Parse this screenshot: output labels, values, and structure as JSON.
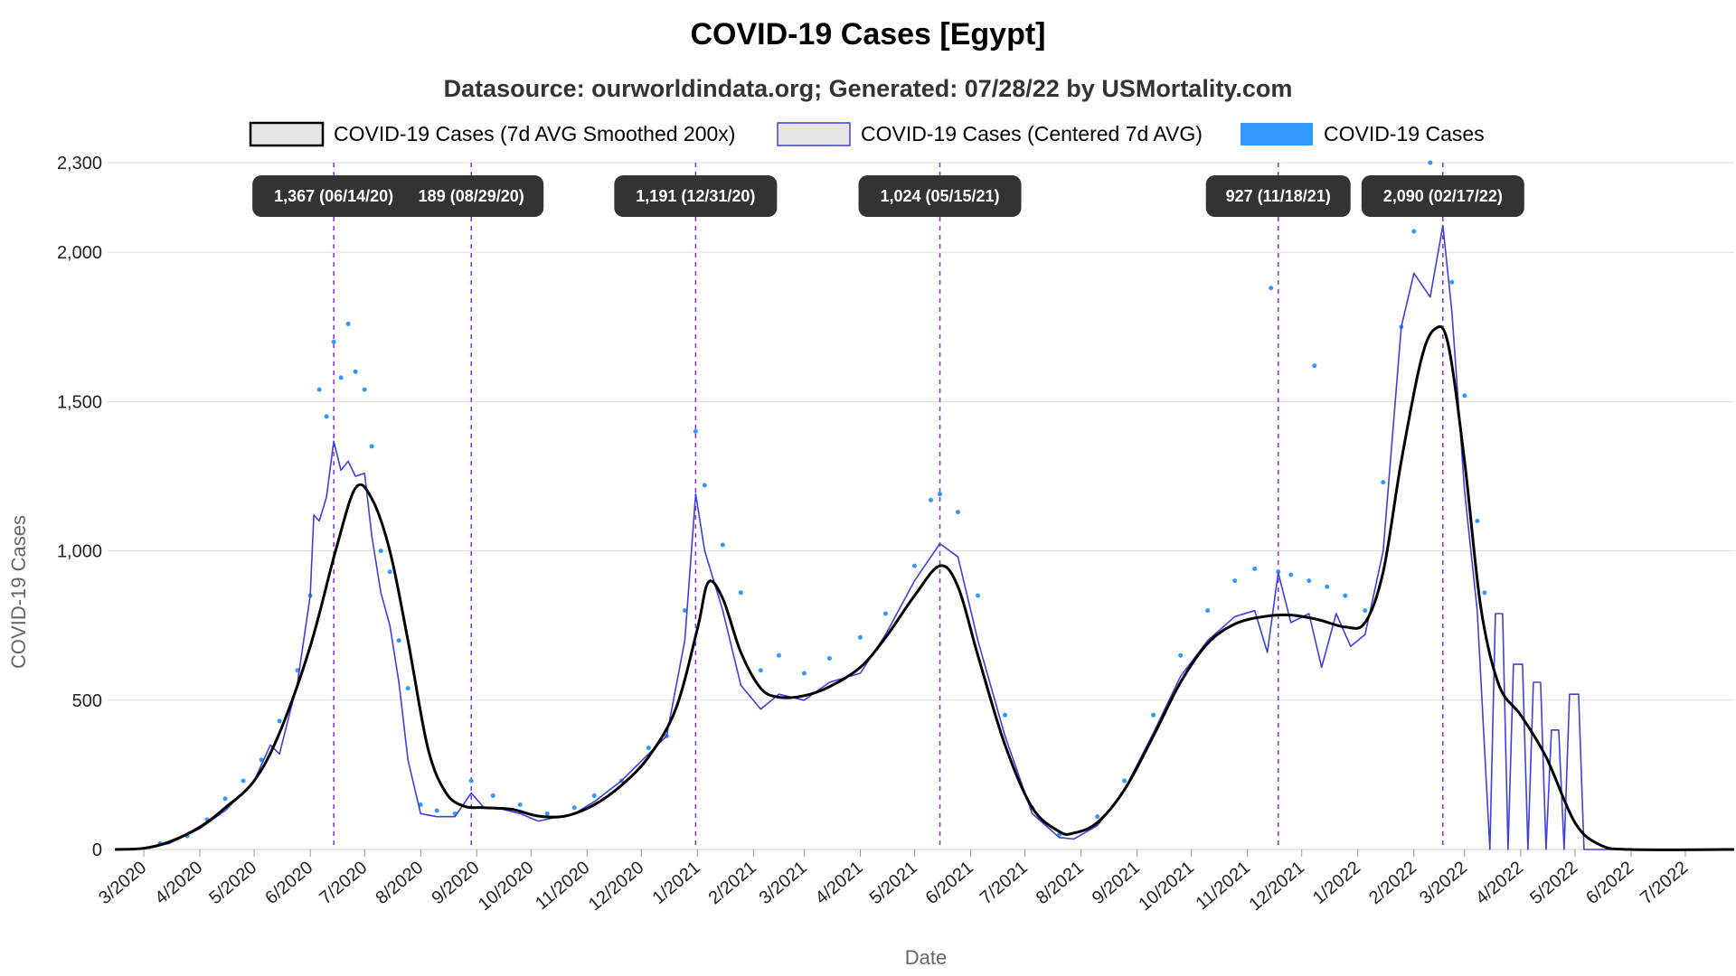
{
  "chart_data": {
    "type": "line",
    "title": "COVID-19 Cases [Egypt]",
    "subtitle": "Datasource: ourworldindata.org; Generated: 07/28/22 by USMortality.com",
    "xlabel": "Date",
    "ylabel": "COVID-19 Cases",
    "xlim": [
      "2020-02-14",
      "2022-07-28"
    ],
    "ylim": [
      0,
      2300
    ],
    "yticks": [
      0,
      500,
      1000,
      1500,
      2000,
      2300
    ],
    "ytick_labels": [
      "0",
      "500",
      "1,000",
      "1,500",
      "2,000",
      "2,300"
    ],
    "xtick_labels": [
      "3/2020",
      "4/2020",
      "5/2020",
      "6/2020",
      "7/2020",
      "8/2020",
      "9/2020",
      "10/2020",
      "11/2020",
      "12/2020",
      "1/2021",
      "2/2021",
      "3/2021",
      "4/2021",
      "5/2021",
      "6/2021",
      "7/2021",
      "8/2021",
      "9/2021",
      "10/2021",
      "11/2021",
      "12/2021",
      "1/2022",
      "2/2022",
      "3/2022",
      "4/2022",
      "5/2022",
      "6/2022",
      "7/2022"
    ],
    "xtick_dates": [
      "2020-03-01",
      "2020-04-01",
      "2020-05-01",
      "2020-06-01",
      "2020-07-01",
      "2020-08-01",
      "2020-09-01",
      "2020-10-01",
      "2020-11-01",
      "2020-12-01",
      "2021-01-01",
      "2021-02-01",
      "2021-03-01",
      "2021-04-01",
      "2021-05-01",
      "2021-06-01",
      "2021-07-01",
      "2021-08-01",
      "2021-09-01",
      "2021-10-01",
      "2021-11-01",
      "2021-12-01",
      "2022-01-01",
      "2022-02-01",
      "2022-03-01",
      "2022-04-01",
      "2022-05-01",
      "2022-06-01",
      "2022-07-01"
    ],
    "grid": true,
    "legend_position": "top",
    "colors": {
      "smoothed": "#000000",
      "centered_avg": "#3f3fdf",
      "daily": "#3399ff",
      "marker_line": "#8a2be2",
      "callout_bg": "#333333"
    },
    "series": [
      {
        "name": "COVID-19 Cases (7d AVG Smoothed 200x)",
        "style": "smooth-line",
        "points": [
          [
            "2020-02-14",
            0
          ],
          [
            "2020-03-01",
            4
          ],
          [
            "2020-03-15",
            25
          ],
          [
            "2020-04-01",
            75
          ],
          [
            "2020-04-15",
            140
          ],
          [
            "2020-05-01",
            230
          ],
          [
            "2020-05-15",
            390
          ],
          [
            "2020-06-01",
            680
          ],
          [
            "2020-06-15",
            1000
          ],
          [
            "2020-06-26",
            1210
          ],
          [
            "2020-07-05",
            1175
          ],
          [
            "2020-07-15",
            1000
          ],
          [
            "2020-07-25",
            700
          ],
          [
            "2020-08-05",
            340
          ],
          [
            "2020-08-15",
            190
          ],
          [
            "2020-08-25",
            145
          ],
          [
            "2020-09-05",
            140
          ],
          [
            "2020-09-20",
            135
          ],
          [
            "2020-10-05",
            112
          ],
          [
            "2020-10-20",
            112
          ],
          [
            "2020-11-05",
            150
          ],
          [
            "2020-11-20",
            215
          ],
          [
            "2020-12-05",
            310
          ],
          [
            "2020-12-20",
            470
          ],
          [
            "2021-01-01",
            740
          ],
          [
            "2021-01-07",
            895
          ],
          [
            "2021-01-15",
            840
          ],
          [
            "2021-01-25",
            660
          ],
          [
            "2021-02-05",
            540
          ],
          [
            "2021-02-15",
            510
          ],
          [
            "2021-03-01",
            515
          ],
          [
            "2021-03-15",
            545
          ],
          [
            "2021-04-01",
            610
          ],
          [
            "2021-04-15",
            710
          ],
          [
            "2021-05-01",
            850
          ],
          [
            "2021-05-15",
            950
          ],
          [
            "2021-05-25",
            880
          ],
          [
            "2021-06-05",
            650
          ],
          [
            "2021-06-20",
            350
          ],
          [
            "2021-07-05",
            140
          ],
          [
            "2021-07-20",
            60
          ],
          [
            "2021-07-28",
            55
          ],
          [
            "2021-08-10",
            90
          ],
          [
            "2021-08-25",
            200
          ],
          [
            "2021-09-10",
            380
          ],
          [
            "2021-09-25",
            560
          ],
          [
            "2021-10-10",
            690
          ],
          [
            "2021-10-25",
            755
          ],
          [
            "2021-11-10",
            780
          ],
          [
            "2021-11-25",
            785
          ],
          [
            "2021-12-10",
            770
          ],
          [
            "2021-12-25",
            745
          ],
          [
            "2022-01-05",
            760
          ],
          [
            "2022-01-15",
            930
          ],
          [
            "2022-01-25",
            1300
          ],
          [
            "2022-02-05",
            1640
          ],
          [
            "2022-02-13",
            1745
          ],
          [
            "2022-02-20",
            1690
          ],
          [
            "2022-03-01",
            1300
          ],
          [
            "2022-03-10",
            810
          ],
          [
            "2022-03-20",
            550
          ],
          [
            "2022-04-01",
            450
          ],
          [
            "2022-04-15",
            310
          ],
          [
            "2022-05-01",
            90
          ],
          [
            "2022-05-15",
            15
          ],
          [
            "2022-06-01",
            0
          ],
          [
            "2022-07-28",
            0
          ]
        ]
      },
      {
        "name": "COVID-19 Cases (Centered 7d AVG)",
        "style": "line",
        "points": [
          [
            "2020-02-14",
            0
          ],
          [
            "2020-03-01",
            5
          ],
          [
            "2020-03-15",
            20
          ],
          [
            "2020-04-01",
            70
          ],
          [
            "2020-04-15",
            130
          ],
          [
            "2020-05-01",
            230
          ],
          [
            "2020-05-10",
            350
          ],
          [
            "2020-05-15",
            320
          ],
          [
            "2020-05-25",
            560
          ],
          [
            "2020-06-01",
            850
          ],
          [
            "2020-06-03",
            1120
          ],
          [
            "2020-06-06",
            1100
          ],
          [
            "2020-06-10",
            1180
          ],
          [
            "2020-06-14",
            1367
          ],
          [
            "2020-06-18",
            1270
          ],
          [
            "2020-06-22",
            1300
          ],
          [
            "2020-06-26",
            1250
          ],
          [
            "2020-07-01",
            1260
          ],
          [
            "2020-07-05",
            1050
          ],
          [
            "2020-07-10",
            860
          ],
          [
            "2020-07-15",
            750
          ],
          [
            "2020-07-20",
            560
          ],
          [
            "2020-07-25",
            300
          ],
          [
            "2020-08-01",
            120
          ],
          [
            "2020-08-10",
            110
          ],
          [
            "2020-08-20",
            110
          ],
          [
            "2020-08-29",
            189
          ],
          [
            "2020-09-05",
            140
          ],
          [
            "2020-09-15",
            135
          ],
          [
            "2020-09-25",
            120
          ],
          [
            "2020-10-05",
            95
          ],
          [
            "2020-10-15",
            108
          ],
          [
            "2020-10-25",
            120
          ],
          [
            "2020-11-05",
            160
          ],
          [
            "2020-11-20",
            230
          ],
          [
            "2020-12-05",
            320
          ],
          [
            "2020-12-15",
            380
          ],
          [
            "2020-12-25",
            700
          ],
          [
            "2020-12-31",
            1191
          ],
          [
            "2021-01-05",
            1000
          ],
          [
            "2021-01-15",
            800
          ],
          [
            "2021-01-25",
            550
          ],
          [
            "2021-02-05",
            470
          ],
          [
            "2021-02-15",
            520
          ],
          [
            "2021-03-01",
            500
          ],
          [
            "2021-03-15",
            560
          ],
          [
            "2021-04-01",
            590
          ],
          [
            "2021-04-15",
            720
          ],
          [
            "2021-05-01",
            900
          ],
          [
            "2021-05-15",
            1024
          ],
          [
            "2021-05-25",
            980
          ],
          [
            "2021-06-05",
            700
          ],
          [
            "2021-06-20",
            380
          ],
          [
            "2021-07-05",
            120
          ],
          [
            "2021-07-20",
            40
          ],
          [
            "2021-07-28",
            35
          ],
          [
            "2021-08-10",
            80
          ],
          [
            "2021-08-25",
            200
          ],
          [
            "2021-09-10",
            390
          ],
          [
            "2021-09-25",
            580
          ],
          [
            "2021-10-10",
            700
          ],
          [
            "2021-10-25",
            780
          ],
          [
            "2021-11-05",
            800
          ],
          [
            "2021-11-12",
            660
          ],
          [
            "2021-11-18",
            927
          ],
          [
            "2021-11-25",
            760
          ],
          [
            "2021-12-05",
            790
          ],
          [
            "2021-12-12",
            610
          ],
          [
            "2021-12-20",
            790
          ],
          [
            "2021-12-28",
            680
          ],
          [
            "2022-01-05",
            720
          ],
          [
            "2022-01-15",
            1000
          ],
          [
            "2022-01-25",
            1750
          ],
          [
            "2022-02-01",
            1930
          ],
          [
            "2022-02-10",
            1850
          ],
          [
            "2022-02-17",
            2090
          ],
          [
            "2022-02-22",
            1800
          ],
          [
            "2022-03-01",
            1200
          ],
          [
            "2022-03-08",
            800
          ],
          [
            "2022-03-15",
            0
          ],
          [
            "2022-03-18",
            790
          ],
          [
            "2022-03-22",
            790
          ],
          [
            "2022-03-25",
            0
          ],
          [
            "2022-03-28",
            620
          ],
          [
            "2022-04-02",
            620
          ],
          [
            "2022-04-05",
            0
          ],
          [
            "2022-04-08",
            560
          ],
          [
            "2022-04-12",
            560
          ],
          [
            "2022-04-15",
            0
          ],
          [
            "2022-04-18",
            400
          ],
          [
            "2022-04-22",
            400
          ],
          [
            "2022-04-25",
            0
          ],
          [
            "2022-04-28",
            520
          ],
          [
            "2022-05-03",
            520
          ],
          [
            "2022-05-06",
            0
          ],
          [
            "2022-07-28",
            0
          ]
        ]
      },
      {
        "name": "COVID-19 Cases",
        "style": "dots",
        "points": [
          [
            "2020-03-10",
            20
          ],
          [
            "2020-03-25",
            45
          ],
          [
            "2020-04-05",
            100
          ],
          [
            "2020-04-15",
            170
          ],
          [
            "2020-04-25",
            230
          ],
          [
            "2020-05-05",
            300
          ],
          [
            "2020-05-15",
            430
          ],
          [
            "2020-05-25",
            600
          ],
          [
            "2020-06-01",
            850
          ],
          [
            "2020-06-06",
            1540
          ],
          [
            "2020-06-10",
            1450
          ],
          [
            "2020-06-14",
            1700
          ],
          [
            "2020-06-18",
            1580
          ],
          [
            "2020-06-22",
            1760
          ],
          [
            "2020-06-26",
            1600
          ],
          [
            "2020-07-01",
            1540
          ],
          [
            "2020-07-05",
            1350
          ],
          [
            "2020-07-10",
            1000
          ],
          [
            "2020-07-15",
            930
          ],
          [
            "2020-07-20",
            700
          ],
          [
            "2020-07-25",
            540
          ],
          [
            "2020-08-01",
            150
          ],
          [
            "2020-08-10",
            130
          ],
          [
            "2020-08-20",
            120
          ],
          [
            "2020-08-29",
            230
          ],
          [
            "2020-09-10",
            180
          ],
          [
            "2020-09-25",
            150
          ],
          [
            "2020-10-10",
            120
          ],
          [
            "2020-10-25",
            140
          ],
          [
            "2020-11-05",
            180
          ],
          [
            "2020-11-20",
            230
          ],
          [
            "2020-12-05",
            340
          ],
          [
            "2020-12-15",
            380
          ],
          [
            "2020-12-25",
            800
          ],
          [
            "2020-12-31",
            1400
          ],
          [
            "2021-01-05",
            1220
          ],
          [
            "2021-01-15",
            1020
          ],
          [
            "2021-01-25",
            860
          ],
          [
            "2021-02-05",
            600
          ],
          [
            "2021-02-15",
            650
          ],
          [
            "2021-03-01",
            590
          ],
          [
            "2021-03-15",
            640
          ],
          [
            "2021-04-01",
            710
          ],
          [
            "2021-04-15",
            790
          ],
          [
            "2021-05-01",
            950
          ],
          [
            "2021-05-10",
            1170
          ],
          [
            "2021-05-15",
            1190
          ],
          [
            "2021-05-25",
            1130
          ],
          [
            "2021-06-05",
            850
          ],
          [
            "2021-06-20",
            450
          ],
          [
            "2021-07-05",
            140
          ],
          [
            "2021-07-20",
            50
          ],
          [
            "2021-08-10",
            110
          ],
          [
            "2021-08-25",
            230
          ],
          [
            "2021-09-10",
            450
          ],
          [
            "2021-09-25",
            650
          ],
          [
            "2021-10-10",
            800
          ],
          [
            "2021-10-25",
            900
          ],
          [
            "2021-11-05",
            940
          ],
          [
            "2021-11-14",
            1880
          ],
          [
            "2021-11-18",
            930
          ],
          [
            "2021-11-25",
            920
          ],
          [
            "2021-12-05",
            900
          ],
          [
            "2021-12-08",
            1620
          ],
          [
            "2021-12-15",
            880
          ],
          [
            "2021-12-25",
            850
          ],
          [
            "2022-01-05",
            800
          ],
          [
            "2022-01-15",
            1230
          ],
          [
            "2022-01-25",
            1750
          ],
          [
            "2022-02-01",
            2070
          ],
          [
            "2022-02-10",
            2300
          ],
          [
            "2022-02-17",
            2130
          ],
          [
            "2022-02-22",
            1900
          ],
          [
            "2022-03-01",
            1520
          ],
          [
            "2022-03-08",
            1100
          ],
          [
            "2022-03-12",
            860
          ]
        ]
      }
    ],
    "annotations": [
      {
        "date": "2020-06-14",
        "label": "1,367 (06/14/20)"
      },
      {
        "date": "2020-08-29",
        "label": "189 (08/29/20)"
      },
      {
        "date": "2020-12-31",
        "label": "1,191 (12/31/20)"
      },
      {
        "date": "2021-05-15",
        "label": "1,024 (05/15/21)"
      },
      {
        "date": "2021-11-18",
        "label": "927 (11/18/21)"
      },
      {
        "date": "2022-02-17",
        "label": "2,090 (02/17/22)"
      }
    ]
  }
}
